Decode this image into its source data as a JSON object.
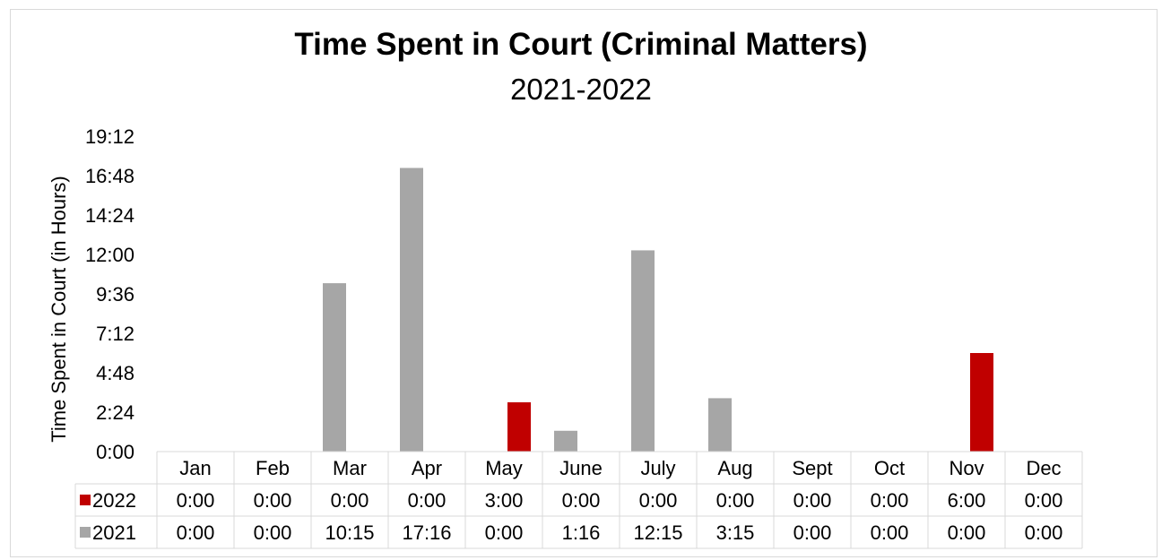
{
  "chart_data": {
    "type": "bar",
    "title": "Time Spent in Court (Criminal Matters)",
    "subtitle": "2021-2022",
    "ylabel": "Time Spent in Court (in Hours)",
    "xlabel": "",
    "categories": [
      "Jan",
      "Feb",
      "Mar",
      "Apr",
      "May",
      "June",
      "July",
      "Aug",
      "Sept",
      "Oct",
      "Nov",
      "Dec"
    ],
    "y_ticks": [
      "0:00",
      "2:24",
      "4:48",
      "7:12",
      "9:36",
      "12:00",
      "14:24",
      "16:48",
      "19:12"
    ],
    "ylim_hours": [
      0,
      19.2
    ],
    "y_tick_step_hours": 2.4,
    "grid": false,
    "legend_placement": "data-table",
    "series": [
      {
        "name": "2022",
        "color": "#c00000",
        "values_hours": [
          0,
          0,
          0,
          0,
          3,
          0,
          0,
          0,
          0,
          0,
          6,
          0
        ],
        "labels": [
          "0:00",
          "0:00",
          "0:00",
          "0:00",
          "3:00",
          "0:00",
          "0:00",
          "0:00",
          "0:00",
          "0:00",
          "6:00",
          "0:00"
        ]
      },
      {
        "name": "2021",
        "color": "#a6a6a6",
        "values_hours": [
          0,
          0,
          10.25,
          17.2667,
          0,
          1.2667,
          12.25,
          3.25,
          0,
          0,
          0,
          0
        ],
        "labels": [
          "0:00",
          "0:00",
          "10:15",
          "17:16",
          "0:00",
          "1:16",
          "12:15",
          "3:15",
          "0:00",
          "0:00",
          "0:00",
          "0:00"
        ]
      }
    ]
  }
}
